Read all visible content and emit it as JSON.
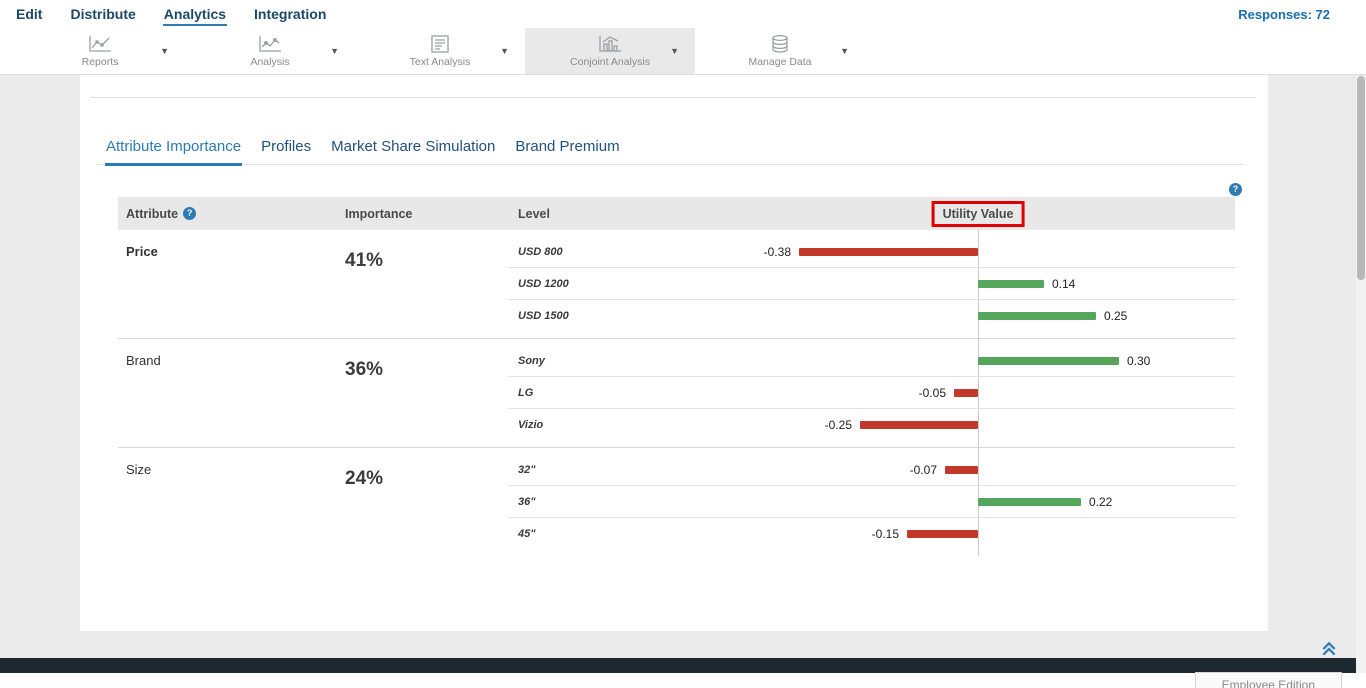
{
  "nav": {
    "items": [
      {
        "label": "Edit"
      },
      {
        "label": "Distribute"
      },
      {
        "label": "Analytics"
      },
      {
        "label": "Integration"
      }
    ],
    "responses": "Responses: 72"
  },
  "toolbar": {
    "items": [
      {
        "label": "Reports",
        "icon": "reports-chart-icon"
      },
      {
        "label": "Analysis",
        "icon": "analysis-chart-icon"
      },
      {
        "label": "Text Analysis",
        "icon": "text-analysis-icon"
      },
      {
        "label": "Conjoint Analysis",
        "icon": "conjoint-analysis-icon"
      },
      {
        "label": "Manage Data",
        "icon": "database-icon"
      }
    ]
  },
  "tabs": [
    {
      "label": "Attribute Importance"
    },
    {
      "label": "Profiles"
    },
    {
      "label": "Market Share Simulation"
    },
    {
      "label": "Brand Premium"
    }
  ],
  "table": {
    "headers": {
      "attribute": "Attribute",
      "importance": "Importance",
      "level": "Level",
      "utility_value": "Utility Value"
    },
    "groups": [
      {
        "attribute": "Price",
        "importance": "41%",
        "levels": [
          {
            "name": "USD 800",
            "value": -0.38,
            "display": "-0.38"
          },
          {
            "name": "USD 1200",
            "value": 0.14,
            "display": "0.14"
          },
          {
            "name": "USD 1500",
            "value": 0.25,
            "display": "0.25"
          }
        ]
      },
      {
        "attribute": "Brand",
        "importance": "36%",
        "levels": [
          {
            "name": "Sony",
            "value": 0.3,
            "display": "0.30"
          },
          {
            "name": "LG",
            "value": -0.05,
            "display": "-0.05"
          },
          {
            "name": "Vizio",
            "value": -0.25,
            "display": "-0.25"
          }
        ]
      },
      {
        "attribute": "Size",
        "importance": "24%",
        "levels": [
          {
            "name": "32\"",
            "value": -0.07,
            "display": "-0.07"
          },
          {
            "name": "36\"",
            "value": 0.22,
            "display": "0.22"
          },
          {
            "name": "45\"",
            "value": -0.15,
            "display": "-0.15"
          }
        ]
      }
    ]
  },
  "footer": {
    "edition": "Employee Edition"
  },
  "colors": {
    "positive_bar": "#56a55c",
    "negative_bar": "#c0392b",
    "highlight_box": "#e00000",
    "accent_blue": "#2d7bb5",
    "nav_text": "#1b4965"
  }
}
